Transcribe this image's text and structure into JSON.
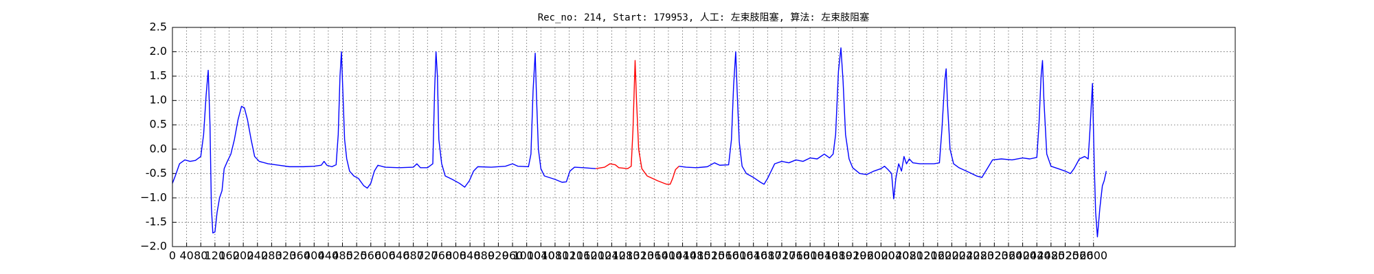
{
  "chart_data": {
    "type": "line",
    "title": "Rec_no: 214, Start: 179953, 人工: 左束肢阻塞, 算法: 左束肢阻塞",
    "xlim": [
      0,
      3000
    ],
    "xticks": [
      0,
      40,
      80,
      120,
      160,
      200,
      240,
      280,
      320,
      360,
      400,
      440,
      480,
      520,
      560,
      600,
      640,
      680,
      720,
      760,
      800,
      840,
      880,
      920,
      960,
      1000,
      1040,
      1080,
      1120,
      1160,
      1200,
      1240,
      1280,
      1320,
      1360,
      1400,
      1440,
      1480,
      1520,
      1560,
      1600,
      1640,
      1680,
      1720,
      1760,
      1800,
      1840,
      1880,
      1920,
      1960,
      2000,
      2040,
      2080,
      2120,
      2160,
      2200,
      2240,
      2280,
      2320,
      2360,
      2400,
      2440,
      2480,
      2520,
      2560,
      2600
    ],
    "ylim": [
      -2.0,
      2.5
    ],
    "yticks": [
      {
        "value": -2.0,
        "label": "−2.0"
      },
      -1.5,
      {
        "value": -1.0,
        "label": "−1.0"
      },
      -0.5,
      {
        "value": 0.0,
        "label": "0.0"
      },
      0.5,
      {
        "value": 1.0,
        "label": "1.0"
      },
      1.5,
      {
        "value": 2.0,
        "label": "2.0"
      },
      2.5
    ],
    "grid": true,
    "series": [
      {
        "color": "#0000ff",
        "x": [
          0,
          8,
          20,
          35,
          50,
          65,
          80,
          88,
          95,
          101,
          106,
          110,
          114,
          120,
          126,
          133,
          140,
          146,
          155,
          165,
          175,
          185,
          195,
          203,
          212,
          222,
          232,
          245,
          270,
          300,
          330,
          370,
          400,
          420,
          428,
          436,
          450,
          462,
          468,
          473,
          477,
          481,
          486,
          492,
          500,
          512,
          525,
          540,
          550,
          560,
          570,
          580,
          600,
          640,
          680,
          690,
          700,
          720,
          735,
          740,
          744,
          748,
          752,
          760,
          770,
          790,
          810,
          825,
          838,
          850,
          862,
          900,
          940,
          960,
          975,
          1005,
          1012,
          1018,
          1024,
          1028,
          1033,
          1040,
          1050,
          1080,
          1100,
          1112,
          1122,
          1135,
          1160,
          1195,
          null,
          1430,
          1450,
          1480,
          1510,
          1530,
          1545,
          1570,
          1578,
          1584,
          1590,
          1594,
          1600,
          1608,
          1620,
          1640,
          1660,
          1670,
          1680,
          1690,
          1700,
          1720,
          1740,
          1760,
          1780,
          1800,
          1820,
          1840,
          1855,
          1865,
          1872,
          1880,
          1887,
          1893,
          1900,
          1910,
          1920,
          1940,
          1960,
          1980,
          2000,
          2010,
          2020,
          2030,
          2036,
          2042,
          2050,
          2058,
          2065,
          2072,
          2080,
          2090,
          2110,
          2150,
          2165,
          2172,
          2180,
          2184,
          2188,
          2195,
          2205,
          2220,
          2250,
          2270,
          2285,
          2300,
          2315,
          2340,
          2370,
          2400,
          2420,
          2440,
          2446,
          2452,
          2456,
          2460,
          2468,
          2480,
          2500,
          2520,
          2535,
          2545,
          2560,
          2575,
          2585,
          2590,
          2597,
          2602,
          2606,
          2611,
          2618,
          2625,
          2630,
          2636
        ],
        "values": [
          -0.7,
          -0.55,
          -0.3,
          -0.22,
          -0.25,
          -0.23,
          -0.15,
          0.3,
          1.1,
          1.62,
          0.5,
          -1.2,
          -1.72,
          -1.7,
          -1.3,
          -1.0,
          -0.85,
          -0.4,
          -0.25,
          -0.1,
          0.2,
          0.6,
          0.88,
          0.85,
          0.6,
          0.2,
          -0.15,
          -0.25,
          -0.3,
          -0.33,
          -0.36,
          -0.36,
          -0.35,
          -0.33,
          -0.25,
          -0.33,
          -0.36,
          -0.32,
          0.3,
          1.5,
          2.0,
          1.2,
          0.2,
          -0.2,
          -0.45,
          -0.55,
          -0.6,
          -0.75,
          -0.8,
          -0.7,
          -0.45,
          -0.33,
          -0.37,
          -0.38,
          -0.37,
          -0.3,
          -0.38,
          -0.38,
          -0.3,
          1.2,
          2.0,
          1.5,
          0.2,
          -0.3,
          -0.55,
          -0.62,
          -0.7,
          -0.78,
          -0.65,
          -0.45,
          -0.36,
          -0.37,
          -0.35,
          -0.3,
          -0.35,
          -0.36,
          -0.1,
          1.2,
          1.97,
          1.0,
          0.0,
          -0.4,
          -0.55,
          -0.62,
          -0.68,
          -0.67,
          -0.45,
          -0.37,
          -0.38,
          -0.4,
          null,
          -0.35,
          -0.37,
          -0.38,
          -0.36,
          -0.28,
          -0.33,
          -0.32,
          0.2,
          1.3,
          2.0,
          1.2,
          0.15,
          -0.35,
          -0.5,
          -0.58,
          -0.68,
          -0.72,
          -0.6,
          -0.45,
          -0.3,
          -0.25,
          -0.28,
          -0.22,
          -0.25,
          -0.18,
          -0.2,
          -0.1,
          -0.18,
          -0.1,
          0.3,
          1.6,
          2.08,
          1.4,
          0.3,
          -0.2,
          -0.38,
          -0.5,
          -0.52,
          -0.45,
          -0.4,
          -0.35,
          -0.42,
          -0.5,
          -1.02,
          -0.6,
          -0.3,
          -0.45,
          -0.15,
          -0.3,
          -0.2,
          -0.28,
          -0.3,
          -0.3,
          -0.28,
          0.4,
          1.4,
          1.65,
          0.9,
          0.0,
          -0.3,
          -0.38,
          -0.48,
          -0.55,
          -0.58,
          -0.4,
          -0.22,
          -0.2,
          -0.22,
          -0.18,
          -0.2,
          -0.17,
          0.5,
          1.5,
          1.82,
          1.0,
          -0.1,
          -0.35,
          -0.4,
          -0.45,
          -0.5,
          -0.4,
          -0.2,
          -0.15,
          -0.2,
          0.4,
          1.35,
          -0.3,
          -1.3,
          -1.8,
          -1.2,
          -0.75,
          -0.65,
          -0.45
        ]
      },
      {
        "color": "#ff0000",
        "x": [
          1195,
          1220,
          1235,
          1250,
          1260,
          1285,
          1295,
          1300,
          1306,
          1310,
          1316,
          1325,
          1340,
          1370,
          1395,
          1405,
          1412,
          1420,
          1430
        ],
        "values": [
          -0.4,
          -0.37,
          -0.3,
          -0.32,
          -0.38,
          -0.4,
          -0.35,
          0.4,
          1.82,
          1.0,
          0.0,
          -0.4,
          -0.55,
          -0.65,
          -0.72,
          -0.72,
          -0.6,
          -0.42,
          -0.35
        ]
      }
    ]
  }
}
